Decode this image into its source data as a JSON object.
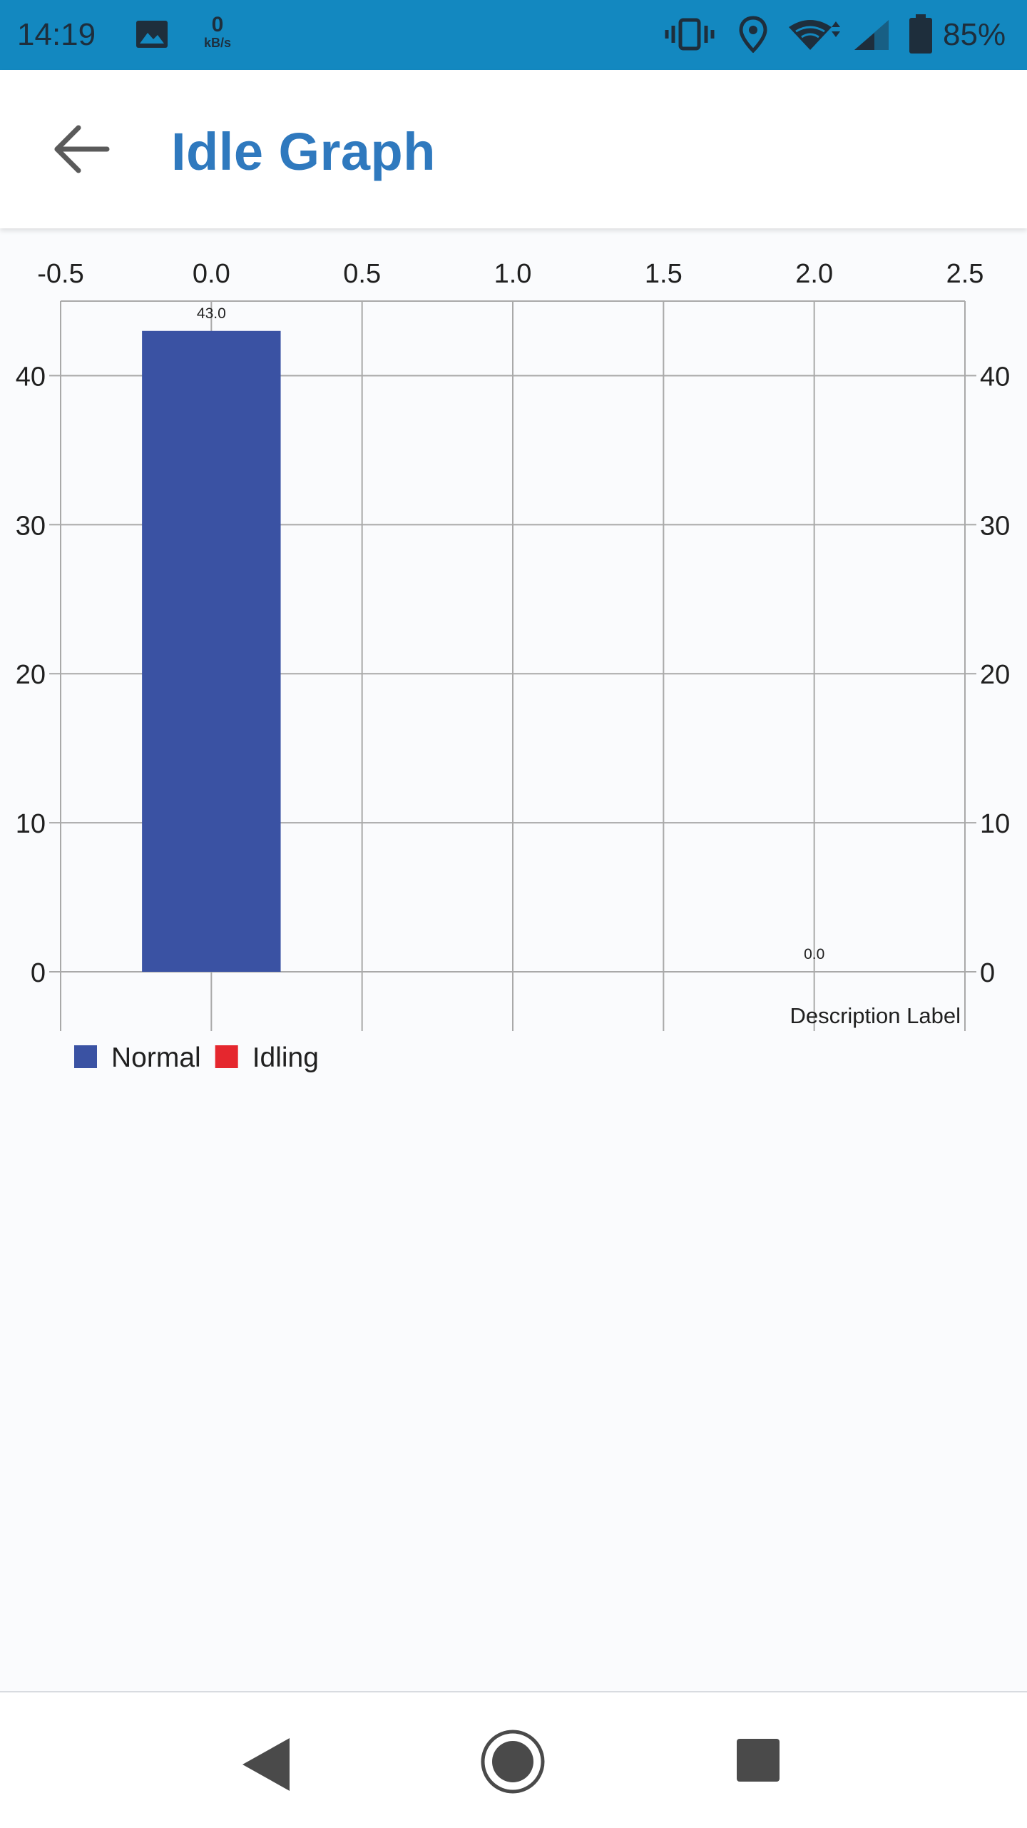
{
  "status_bar": {
    "time": "14:19",
    "net_speed_value": "0",
    "net_speed_unit": "kB/s",
    "battery_percent": "85%",
    "icons": [
      "gallery-icon",
      "vibrate-icon",
      "location-icon",
      "wifi-icon",
      "signal-icon",
      "battery-icon"
    ]
  },
  "app_bar": {
    "title": "Idle Graph",
    "back_icon": "arrow-back-icon"
  },
  "chart_data": {
    "type": "bar",
    "x_ticks": [
      "-0.5",
      "0.0",
      "0.5",
      "1.0",
      "1.5",
      "2.0",
      "2.5"
    ],
    "y_ticks_left": [
      "0",
      "10",
      "20",
      "30",
      "40"
    ],
    "y_ticks_right": [
      "0",
      "10",
      "20",
      "30",
      "40"
    ],
    "xlim": [
      -0.5,
      2.5
    ],
    "ylim": [
      0,
      45
    ],
    "grid": true,
    "x_axis_position": "top",
    "series": [
      {
        "name": "Normal",
        "color": "#3a52a3",
        "points": [
          {
            "x": 0.0,
            "y": 43.0,
            "label": "43.0"
          }
        ]
      },
      {
        "name": "Idling",
        "color": "#e5272e",
        "points": [
          {
            "x": 2.0,
            "y": 0.0,
            "label": "0.0"
          }
        ]
      }
    ],
    "description": "Description Label",
    "legend_placement": "bottom-left"
  },
  "nav_bar": {
    "icons": [
      "nav-back-icon",
      "nav-home-icon",
      "nav-recents-icon"
    ]
  },
  "colors": {
    "status_bar": "#1388c0",
    "title": "#2f79be",
    "normal": "#3a52a3",
    "idling": "#e5272e",
    "background": "#fafbfd"
  }
}
